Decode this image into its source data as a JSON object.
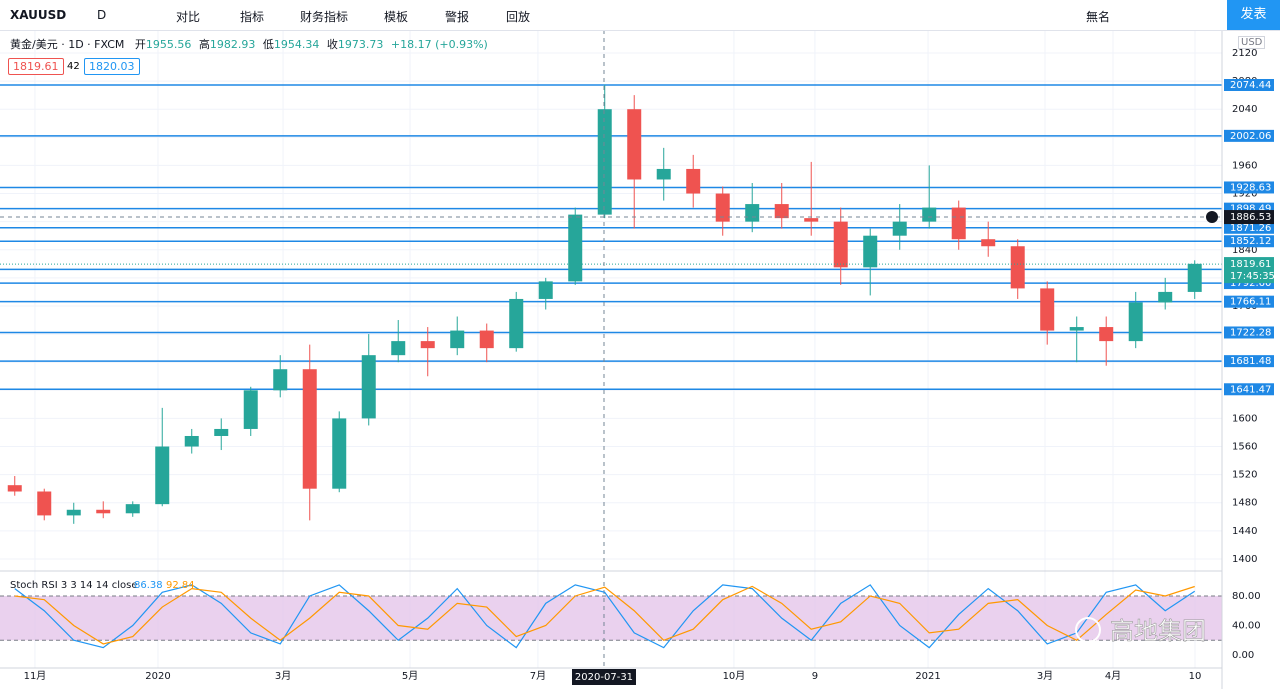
{
  "toolbar": {
    "symbol": "XAUUSD",
    "interval": "D",
    "buttons": [
      "对比",
      "指标",
      "财务指标",
      "模板",
      "警报",
      "回放"
    ],
    "layout_name": "無名",
    "publish": "发表"
  },
  "legend": {
    "title": "黄金/美元 · 1D · FXCM",
    "ohlc": [
      {
        "label": "开",
        "value": "1955.56"
      },
      {
        "label": "高",
        "value": "1982.93"
      },
      {
        "label": "低",
        "value": "1954.34"
      },
      {
        "label": "收",
        "value": "1973.73"
      }
    ],
    "change": "+18.17 (+0.93%)",
    "bid": "1819.61",
    "spread": "42",
    "ask": "1820.03"
  },
  "currency": "USD",
  "watermark": "高地集团",
  "chart_data": [
    {
      "type": "candlestick",
      "up_color": "#26a69a",
      "down_color": "#ef5350",
      "level_color": "#1e88e5",
      "x": [
        1,
        3,
        5,
        7,
        9,
        11,
        13,
        15,
        17,
        19,
        21,
        23,
        25,
        27,
        29,
        31,
        33,
        35,
        37,
        39,
        41,
        43,
        45,
        47,
        49,
        51,
        53,
        55,
        57,
        59,
        61,
        63,
        65,
        67,
        69,
        71,
        73,
        75,
        77,
        79,
        81
      ],
      "open": [
        1505,
        1496,
        1462,
        1470,
        1465,
        1478,
        1560,
        1575,
        1585,
        1640,
        1670,
        1500,
        1600,
        1690,
        1710,
        1700,
        1725,
        1700,
        1770,
        1795,
        1890,
        2040,
        1940,
        1955,
        1920,
        1880,
        1905,
        1885,
        1880,
        1815,
        1860,
        1880,
        1900,
        1855,
        1845,
        1785,
        1725,
        1730,
        1710,
        1765,
        1780
      ],
      "high": [
        1518,
        1500,
        1480,
        1482,
        1482,
        1615,
        1585,
        1600,
        1645,
        1690,
        1705,
        1610,
        1720,
        1740,
        1730,
        1745,
        1735,
        1780,
        1800,
        1900,
        2075,
        2060,
        1985,
        1975,
        1930,
        1935,
        1935,
        1965,
        1900,
        1870,
        1905,
        1960,
        1910,
        1880,
        1855,
        1795,
        1745,
        1745,
        1780,
        1800,
        1825
      ],
      "low": [
        1490,
        1455,
        1450,
        1458,
        1460,
        1475,
        1550,
        1555,
        1575,
        1630,
        1455,
        1495,
        1590,
        1680,
        1660,
        1690,
        1680,
        1695,
        1755,
        1790,
        1885,
        1870,
        1910,
        1900,
        1860,
        1865,
        1870,
        1860,
        1790,
        1775,
        1840,
        1870,
        1840,
        1830,
        1770,
        1705,
        1680,
        1675,
        1700,
        1755,
        1770
      ],
      "close": [
        1496,
        1462,
        1470,
        1465,
        1478,
        1560,
        1575,
        1585,
        1640,
        1670,
        1500,
        1600,
        1690,
        1710,
        1700,
        1725,
        1700,
        1770,
        1795,
        1890,
        2040,
        1940,
        1955,
        1920,
        1880,
        1905,
        1885,
        1880,
        1815,
        1860,
        1880,
        1900,
        1855,
        1845,
        1785,
        1725,
        1730,
        1710,
        1765,
        1780,
        1820
      ],
      "xlim": [
        0,
        82.85
      ],
      "xticks": [
        {
          "value": 2.37,
          "label": "11月"
        },
        {
          "value": 10.71,
          "label": "2020"
        },
        {
          "value": 19.19,
          "label": "3月"
        },
        {
          "value": 27.8,
          "label": "5月"
        },
        {
          "value": 36.47,
          "label": "7月"
        },
        {
          "value": 49.76,
          "label": "10月"
        },
        {
          "value": 55.25,
          "label": "9"
        },
        {
          "value": 62.92,
          "label": "2021"
        },
        {
          "value": 70.85,
          "label": "3月"
        },
        {
          "value": 75.46,
          "label": "4月"
        },
        {
          "value": 81.02,
          "label": "10"
        }
      ],
      "ylim": [
        1384.3,
        2152.7
      ],
      "yticks": [
        1400,
        1440,
        1480,
        1520,
        1560,
        1600,
        1640,
        1680,
        1720,
        1760,
        1800,
        1840,
        1880,
        1920,
        1960,
        2000,
        2040,
        2080,
        2120
      ],
      "grid": true,
      "levels": [
        2074.44,
        2002.06,
        1928.63,
        1898.49,
        1871.26,
        1852.12,
        1812.04,
        {
          "value": 1792.6,
          "label": "1792.60"
        },
        1766.11,
        1722.28,
        1681.48,
        1641.47
      ],
      "last_price": 1819.61,
      "countdown": "17:45:35",
      "crosshair": {
        "x": 40.95,
        "x_label": "2020-07-31",
        "y": 1886.53
      }
    },
    {
      "type": "line",
      "title": "Stoch RSI 3 3 14 14 close",
      "x": [
        1,
        3,
        5,
        7,
        9,
        11,
        13,
        15,
        17,
        19,
        21,
        23,
        25,
        27,
        29,
        31,
        33,
        35,
        37,
        39,
        41,
        43,
        45,
        47,
        49,
        51,
        53,
        55,
        57,
        59,
        61,
        63,
        65,
        67,
        69,
        71,
        73,
        75,
        77,
        79,
        81
      ],
      "series": [
        {
          "name": "K",
          "color": "#2196f3",
          "values": [
            90,
            60,
            20,
            10,
            40,
            85,
            95,
            70,
            30,
            15,
            80,
            95,
            60,
            20,
            50,
            90,
            40,
            10,
            70,
            95,
            85,
            30,
            10,
            60,
            95,
            90,
            50,
            20,
            70,
            95,
            40,
            10,
            55,
            90,
            60,
            15,
            30,
            85,
            95,
            60,
            86.38
          ]
        },
        {
          "name": "D",
          "color": "#ff9800",
          "values": [
            80,
            75,
            40,
            15,
            25,
            65,
            90,
            85,
            50,
            20,
            50,
            85,
            80,
            40,
            35,
            70,
            65,
            25,
            40,
            80,
            92,
            60,
            20,
            35,
            75,
            93,
            70,
            35,
            45,
            80,
            70,
            30,
            35,
            70,
            75,
            40,
            20,
            55,
            88,
            80,
            92.84
          ]
        }
      ],
      "ylim": [
        -17.6,
        112.5
      ],
      "yticks": [
        {
          "value": 80,
          "label": "80.00"
        },
        {
          "value": 40,
          "label": "40.00"
        },
        {
          "value": 0,
          "label": "0.00"
        }
      ],
      "band": [
        20,
        80
      ],
      "band_color": "#e1bee7"
    }
  ]
}
